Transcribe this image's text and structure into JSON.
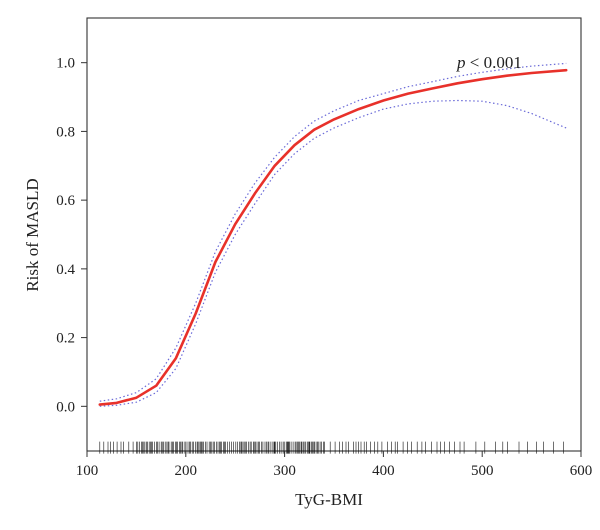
{
  "chart_data": {
    "type": "line",
    "title": "",
    "xlabel": "TyG-BMI",
    "ylabel": "Risk of MASLD",
    "annotation": {
      "italic": "p",
      "text": " < 0.001"
    },
    "xlim": [
      100,
      600
    ],
    "ylim": [
      -0.13,
      1.13
    ],
    "x_ticks": [
      "100",
      "200",
      "300",
      "400",
      "500",
      "600"
    ],
    "y_ticks": [
      "0.0",
      "0.2",
      "0.4",
      "0.6",
      "0.8",
      "1.0"
    ],
    "grid": false,
    "legend": "none",
    "colors": {
      "fit": "#e8312a",
      "ci": "#6a6ad8",
      "rug": "#111111",
      "frame": "#333333"
    },
    "series": [
      {
        "role": "fit",
        "x": [
          113,
          130,
          150,
          170,
          190,
          210,
          230,
          250,
          270,
          290,
          310,
          330,
          350,
          375,
          400,
          425,
          450,
          475,
          500,
          525,
          550,
          585
        ],
        "y": [
          0.005,
          0.01,
          0.025,
          0.06,
          0.14,
          0.27,
          0.42,
          0.53,
          0.62,
          0.7,
          0.76,
          0.805,
          0.835,
          0.865,
          0.89,
          0.91,
          0.925,
          0.94,
          0.952,
          0.962,
          0.97,
          0.978
        ]
      },
      {
        "role": "ci-upper",
        "x": [
          113,
          130,
          150,
          170,
          190,
          210,
          230,
          250,
          270,
          290,
          310,
          330,
          350,
          375,
          400,
          425,
          450,
          475,
          500,
          525,
          550,
          585
        ],
        "y": [
          0.015,
          0.022,
          0.04,
          0.08,
          0.17,
          0.3,
          0.45,
          0.56,
          0.65,
          0.725,
          0.785,
          0.83,
          0.86,
          0.89,
          0.91,
          0.93,
          0.945,
          0.96,
          0.972,
          0.982,
          0.99,
          0.998
        ]
      },
      {
        "role": "ci-lower",
        "x": [
          113,
          130,
          150,
          170,
          190,
          210,
          230,
          250,
          270,
          290,
          310,
          330,
          350,
          375,
          400,
          425,
          450,
          475,
          500,
          525,
          550,
          585
        ],
        "y": [
          0.0,
          0.003,
          0.012,
          0.04,
          0.11,
          0.24,
          0.39,
          0.5,
          0.59,
          0.675,
          0.735,
          0.78,
          0.81,
          0.84,
          0.865,
          0.88,
          0.888,
          0.89,
          0.888,
          0.875,
          0.852,
          0.81
        ]
      }
    ],
    "rug": {
      "y": -0.12,
      "x_range": [
        113,
        590
      ],
      "dense_range": [
        150,
        340
      ],
      "spacing_dense": 1.5,
      "spacing_sparse": 4
    }
  }
}
